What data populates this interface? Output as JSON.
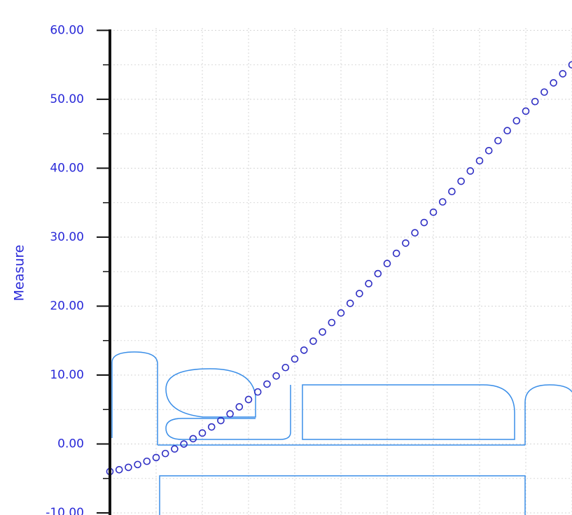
{
  "chart_data": {
    "type": "scatter",
    "y_label": "Measure",
    "x": [
      0,
      0.2,
      0.4,
      0.6,
      0.8,
      1.0,
      1.2,
      1.4,
      1.6,
      1.8,
      2.0,
      2.2,
      2.4,
      2.6,
      2.8,
      3.0,
      3.2,
      3.4,
      3.6,
      3.8,
      4.0,
      4.2,
      4.4,
      4.6,
      4.8,
      5.0,
      5.2,
      5.4,
      5.6,
      5.8,
      6.0,
      6.2,
      6.4,
      6.6,
      6.8,
      7.0,
      7.2,
      7.4,
      7.6,
      7.8,
      8.0,
      8.2,
      8.4,
      8.6,
      8.8,
      9.0,
      9.2,
      9.4,
      9.6,
      9.8,
      10.0
    ],
    "series": [
      {
        "color": "#2f2fc4",
        "values": [
          -4.0,
          -3.73,
          -3.39,
          -2.98,
          -2.51,
          -1.97,
          -1.38,
          -0.72,
          0.0,
          0.77,
          1.59,
          2.47,
          3.4,
          4.37,
          5.39,
          6.45,
          7.55,
          8.69,
          9.87,
          11.09,
          12.33,
          13.61,
          14.92,
          16.25,
          17.61,
          19.0,
          20.4,
          21.82,
          23.26,
          24.71,
          26.18,
          27.65,
          29.14,
          30.63,
          32.12,
          33.62,
          35.12,
          36.62,
          38.11,
          39.6,
          41.08,
          42.55,
          44.0,
          45.45,
          46.88,
          48.28,
          49.67,
          51.04,
          52.38,
          53.7,
          55.0
        ]
      }
    ],
    "xlim": [
      0,
      10
    ],
    "ylim": [
      -10.3,
      64.4
    ],
    "yticks": [
      {
        "value": -10,
        "label": "-10.00"
      },
      {
        "value": 0,
        "label": "0.00"
      },
      {
        "value": 10,
        "label": "10.00"
      },
      {
        "value": 20,
        "label": "20.00"
      },
      {
        "value": 30,
        "label": "30.00"
      },
      {
        "value": 40,
        "label": "40.00"
      },
      {
        "value": 50,
        "label": "50.00"
      },
      {
        "value": 60,
        "label": "60.00"
      }
    ],
    "grid": true,
    "label_color": "#2a2ad8"
  }
}
